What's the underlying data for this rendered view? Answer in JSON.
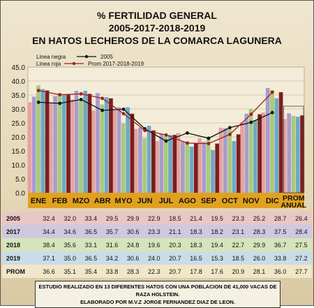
{
  "title_lines": [
    "% FERTILIDAD GENERAL",
    "2005-2017-2018-2019",
    "EN HATOS LECHEROS DE LA COMARCA LAGUNERA"
  ],
  "chart_data": {
    "type": "bar",
    "categories": [
      "ENE",
      "FEB",
      "MZO",
      "ABR",
      "MYO",
      "JUN",
      "JUL",
      "AGO",
      "SEP",
      "OCT",
      "NOV",
      "DIC",
      "PROM ANUAL"
    ],
    "ylim": [
      0,
      45
    ],
    "yticks": [
      "0.0",
      "5.0",
      "10.0",
      "15.0",
      "20.0",
      "25.0",
      "30.0",
      "35.0",
      "40.0",
      "45.0"
    ],
    "legend": {
      "negra_label": "Linea negra",
      "roja_label": "Linea roja",
      "negra_series": "2005",
      "roja_series": "Prom 2017-2018-2019"
    },
    "series": [
      {
        "name": "2005",
        "values": [
          32.4,
          32.0,
          33.4,
          29.5,
          29.9,
          22.9,
          18.5,
          21.4,
          19.5,
          23.3,
          25.2,
          28.7,
          26.4
        ],
        "color": "#e6a39e"
      },
      {
        "name": "2017",
        "values": [
          34.4,
          34.6,
          36.5,
          35.7,
          30.6,
          23.3,
          21.1,
          18.3,
          18.2,
          23.1,
          28.3,
          37.5,
          28.4
        ],
        "color": "#a89ccc"
      },
      {
        "name": "2018",
        "values": [
          38.4,
          35.6,
          33.1,
          31.6,
          24.8,
          19.6,
          20.3,
          18.3,
          19.4,
          22.7,
          29.9,
          36.7,
          27.5
        ],
        "color": "#a9c97c"
      },
      {
        "name": "2019",
        "values": [
          37.1,
          35.0,
          36.5,
          34.2,
          30.6,
          24.0,
          20.7,
          16.5,
          15.3,
          18.5,
          26.0,
          33.8,
          27.2
        ],
        "color": "#6fa9c4"
      },
      {
        "name": "PROM",
        "values": [
          36.6,
          35.1,
          35.4,
          33.8,
          28.3,
          22.3,
          20.7,
          17.8,
          17.6,
          20.9,
          28.1,
          36.0,
          27.7
        ],
        "color": "#7a1f1f"
      }
    ],
    "lines": [
      {
        "name": "2005",
        "color": "#111111",
        "values": [
          32.4,
          32.0,
          33.4,
          29.5,
          29.9,
          22.9,
          18.5,
          21.4,
          19.5,
          23.3,
          25.2,
          28.7
        ]
      },
      {
        "name": "Prom 2017-2018-2019",
        "color": "#9e1f1f",
        "values": [
          36.6,
          35.1,
          35.4,
          33.8,
          28.3,
          22.3,
          20.7,
          17.8,
          17.6,
          20.9,
          28.1,
          36.0
        ]
      }
    ]
  },
  "table": {
    "rows": [
      {
        "label": "2005",
        "values": [
          "32.4",
          "32.0",
          "33.4",
          "29.5",
          "29.9",
          "22.9",
          "18.5",
          "21.4",
          "19.5",
          "23.3",
          "25.2",
          "28.7",
          "26.4"
        ]
      },
      {
        "label": "2017",
        "values": [
          "34.4",
          "34.6",
          "36.5",
          "35.7",
          "30.6",
          "23.3",
          "21.1",
          "18.3",
          "18.2",
          "23.1",
          "28.3",
          "37.5",
          "28.4"
        ]
      },
      {
        "label": "2018",
        "values": [
          "38.4",
          "35.6",
          "33.1",
          "31.6",
          "24.8",
          "19.6",
          "20.3",
          "18.3",
          "19.4",
          "22.7",
          "29.9",
          "36.7",
          "27.5"
        ]
      },
      {
        "label": "2019",
        "values": [
          "37.1",
          "35.0",
          "36.5",
          "34.2",
          "30.6",
          "24.0",
          "20.7",
          "16.5",
          "15.3",
          "18.5",
          "26.0",
          "33.8",
          "27.2"
        ]
      },
      {
        "label": "PROM",
        "values": [
          "36.6",
          "35.1",
          "35.4",
          "33.8",
          "28.3",
          "22.3",
          "20.7",
          "17.8",
          "17.6",
          "20.9",
          "28.1",
          "36.0",
          "27.7"
        ]
      }
    ]
  },
  "footer_lines": [
    "ESTUDIO REALIZADO EN 13 DIFERENTES HATOS CON UNA POBLACION DE 41,000 VACAS DE RAZA HOLSTEIN.",
    "ELABORADO POR M.V.Z JORGE FERNANDEZ DIAZ DE LEON."
  ]
}
